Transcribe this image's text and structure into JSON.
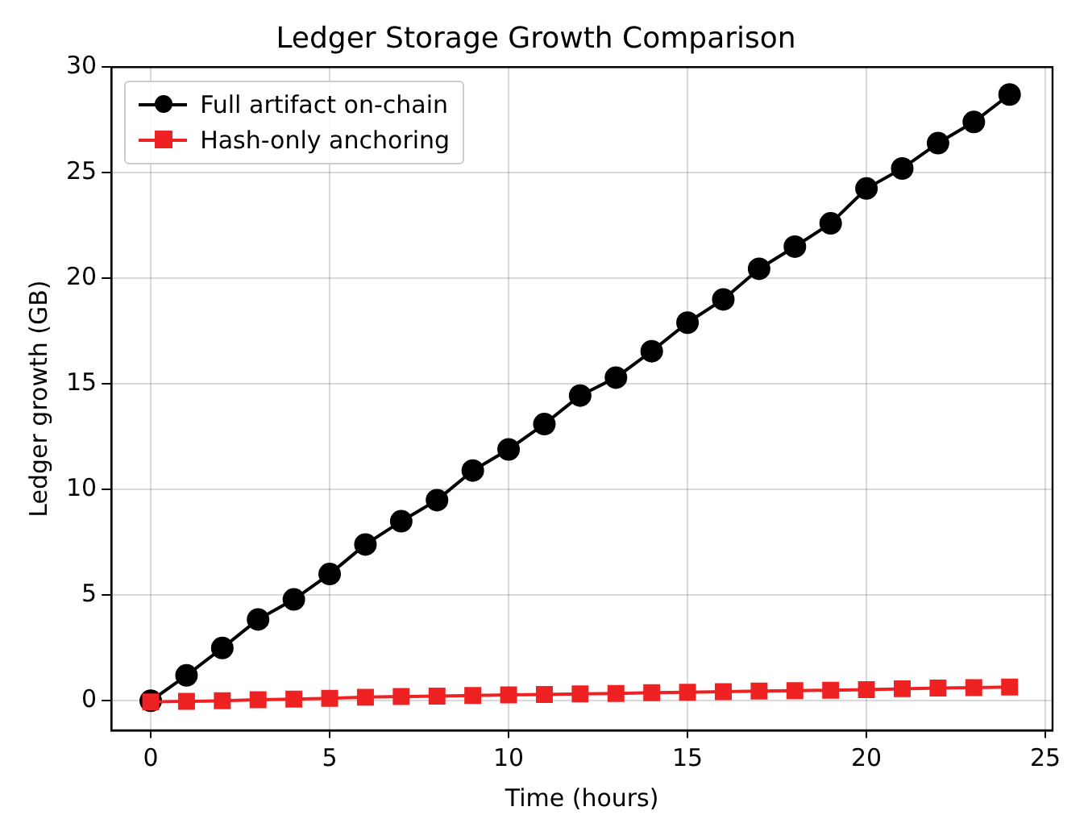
{
  "chart_data": {
    "type": "line",
    "title": "Ledger Storage Growth Comparison",
    "xlabel": "Time (hours)",
    "ylabel": "Ledger growth (GB)",
    "x": [
      0,
      1,
      2,
      3,
      4,
      5,
      6,
      7,
      8,
      9,
      10,
      11,
      12,
      13,
      14,
      15,
      16,
      17,
      18,
      19,
      20,
      21,
      22,
      23,
      24
    ],
    "series": [
      {
        "name": "Full artifact on-chain",
        "color": "#000000",
        "marker": "circle",
        "values": [
          0,
          1.2,
          2.5,
          3.85,
          4.8,
          6.0,
          7.4,
          8.5,
          9.5,
          10.9,
          11.9,
          13.1,
          14.45,
          15.3,
          16.55,
          17.9,
          19.0,
          20.45,
          21.5,
          22.6,
          24.25,
          25.2,
          26.4,
          27.4,
          28.7
        ]
      },
      {
        "name": "Hash-only anchoring",
        "color": "#ee2222",
        "marker": "square",
        "values": [
          -0.05,
          -0.03,
          0,
          0.05,
          0.08,
          0.12,
          0.17,
          0.2,
          0.22,
          0.25,
          0.28,
          0.3,
          0.33,
          0.35,
          0.38,
          0.4,
          0.43,
          0.46,
          0.48,
          0.5,
          0.53,
          0.57,
          0.6,
          0.62,
          0.65
        ]
      }
    ],
    "xlim": [
      -1.1,
      25.2
    ],
    "xticks": [
      0,
      5,
      10,
      15,
      20,
      25
    ],
    "ylim": [
      -1.4,
      30
    ],
    "yticks": [
      0,
      5,
      10,
      15,
      20,
      25,
      30
    ],
    "grid": true,
    "legend": "top left",
    "line_style": "solid"
  }
}
